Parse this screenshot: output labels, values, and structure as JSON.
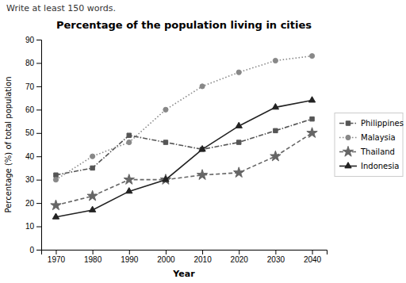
{
  "chart_data": {
    "type": "line",
    "title": "Percentage of the population living in cities",
    "subtitle": "Write at least 150 words.",
    "x_label": "Year",
    "y_label": "Percentage (%) of total population",
    "x": [
      1970,
      1980,
      1990,
      2000,
      2010,
      2020,
      2030,
      2040
    ],
    "series": [
      {
        "name": "Philippines",
        "color": "#555555",
        "marker": "square",
        "line_style": "dashdot",
        "values": [
          32,
          35,
          49,
          46,
          43,
          46,
          51,
          56
        ]
      },
      {
        "name": "Malaysia",
        "color": "#888888",
        "marker": "circle",
        "line_style": "dotted",
        "values": [
          30,
          40,
          46,
          60,
          70,
          76,
          81,
          83
        ]
      },
      {
        "name": "Thailand",
        "color": "#666666",
        "marker": "star",
        "line_style": "dashed",
        "values": [
          19,
          23,
          30,
          30,
          32,
          33,
          40,
          50
        ]
      },
      {
        "name": "Indonesia",
        "color": "#222222",
        "marker": "triangle",
        "line_style": "solid",
        "values": [
          14,
          17,
          25,
          30,
          43,
          53,
          61,
          64
        ]
      }
    ],
    "xlim": [
      1966,
      2044
    ],
    "xticks": [
      1970,
      1980,
      1990,
      2000,
      2010,
      2020,
      2030,
      2040
    ],
    "ylim": [
      0,
      90
    ],
    "yticks": [
      0,
      10,
      20,
      30,
      40,
      50,
      60,
      70,
      80,
      90
    ],
    "grid": false,
    "legend": "right"
  }
}
